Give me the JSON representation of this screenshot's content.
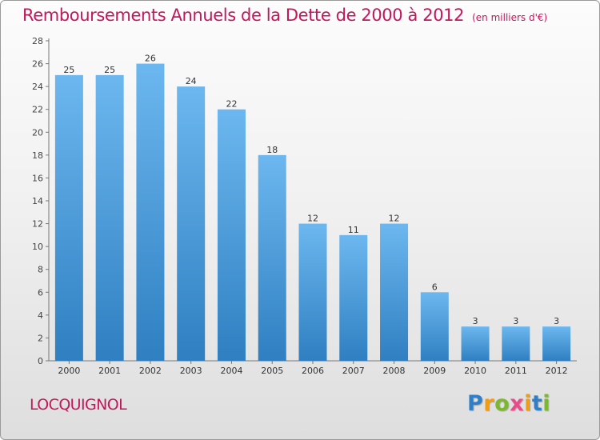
{
  "title": "Remboursements Annuels de la Dette de 2000 à 2012",
  "unit": "(en milliers d'€)",
  "commune": "LOCQUIGNOL",
  "brand": {
    "letters": [
      "P",
      "r",
      "o",
      "x",
      "i",
      "t",
      "i"
    ],
    "colors": [
      "#2e7fc8",
      "#f39c12",
      "#7cb82f",
      "#e94b8a",
      "#f39c12",
      "#2e7fc8",
      "#7cb82f"
    ]
  },
  "colors": {
    "title": "#c2185b",
    "bar_top": "#6cb7ef",
    "bar_bottom": "#2f7fc1"
  },
  "chart_data": {
    "type": "bar",
    "categories": [
      "2000",
      "2001",
      "2002",
      "2003",
      "2004",
      "2005",
      "2006",
      "2007",
      "2008",
      "2009",
      "2010",
      "2011",
      "2012"
    ],
    "values": [
      25,
      25,
      26,
      24,
      22,
      18,
      12,
      11,
      12,
      6,
      3,
      3,
      3
    ],
    "data_labels": [
      "25",
      "25",
      "26",
      "24",
      "22",
      "18",
      "12",
      "11",
      "12",
      "6",
      "3",
      "3",
      "3"
    ],
    "yticks": [
      "0",
      "2",
      "4",
      "6",
      "8",
      "10",
      "12",
      "14",
      "16",
      "18",
      "20",
      "22",
      "24",
      "26",
      "28"
    ],
    "ylim": [
      0,
      28
    ],
    "grid": false,
    "legend": "none"
  }
}
